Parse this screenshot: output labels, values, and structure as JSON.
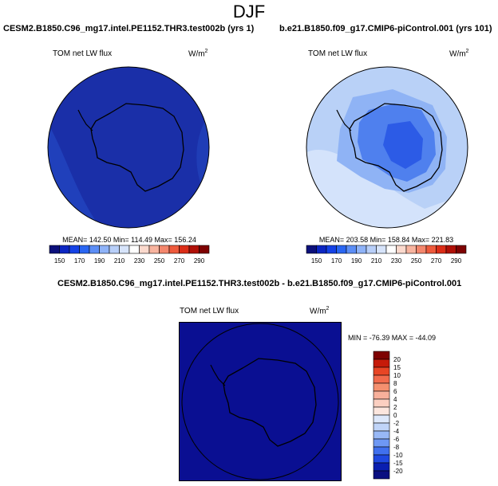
{
  "title": "DJF",
  "panels": [
    {
      "case": "CESM2.B1850.C96_mg17.intel.PE1152.THR3.test002b (yrs 1)",
      "variable": "TOM net LW flux",
      "units": "W/m",
      "units_exp": "2",
      "stats": "MEAN= 142.50 Min= 114.49 Max= 156.24",
      "colorbar": {
        "labels": [
          "150",
          "170",
          "190",
          "210",
          "230",
          "250",
          "270",
          "290"
        ],
        "colors": [
          "#0c107b",
          "#0c26c2",
          "#1542e6",
          "#2a66f2",
          "#5c8ef6",
          "#8fb3f8",
          "#b8cff9",
          "#d7e4fb",
          "#ffffff",
          "#fbd9cd",
          "#f8b49f",
          "#f4876d",
          "#ee5a3c",
          "#db2d17",
          "#b01007",
          "#7e0202"
        ]
      }
    },
    {
      "case": "b.e21.B1850.f09_g17.CMIP6-piControl.001 (yrs 101)",
      "variable": "TOM net LW flux",
      "units": "W/m",
      "units_exp": "2",
      "stats": "MEAN= 203.58 Min= 158.84 Max= 221.83",
      "colorbar": {
        "labels": [
          "150",
          "170",
          "190",
          "210",
          "230",
          "250",
          "270",
          "290"
        ],
        "colors": [
          "#0c107b",
          "#0c26c2",
          "#1542e6",
          "#2a66f2",
          "#5c8ef6",
          "#8fb3f8",
          "#b8cff9",
          "#d7e4fb",
          "#ffffff",
          "#fbd9cd",
          "#f8b49f",
          "#f4876d",
          "#ee5a3c",
          "#db2d17",
          "#b01007",
          "#7e0202"
        ]
      }
    }
  ],
  "diff": {
    "case": "CESM2.B1850.C96_mg17.intel.PE1152.THR3.test002b - b.e21.B1850.f09_g17.CMIP6-piControl.001",
    "variable": "TOM net LW flux",
    "units": "W/m",
    "units_exp": "2",
    "stats": "MIN = -76.39 MAX = -44.09",
    "colorbar": {
      "labels": [
        "20",
        "15",
        "10",
        "8",
        "6",
        "4",
        "2",
        "0",
        "-2",
        "-4",
        "-6",
        "-8",
        "-10",
        "-15",
        "-20"
      ],
      "colors": [
        "#7e0202",
        "#c61b0a",
        "#e84525",
        "#f26a4c",
        "#f5906f",
        "#f8b09b",
        "#fbcfc1",
        "#fce6de",
        "#dde8fb",
        "#c0d4f8",
        "#98b8f6",
        "#6e98f4",
        "#4070ee",
        "#1f48e0",
        "#0a1fb0",
        "#0a0f80"
      ]
    }
  },
  "colors": {
    "panel1_fill": "#1a2fa8",
    "panel1_edge": "#2040bb",
    "panel2_ocean": "#b9d1f7",
    "panel2_mid": "#8fb3f5",
    "panel2_deep": "#4f80ee",
    "panel2_core": "#2c5be6",
    "diff_fill": "#0a0f92",
    "coast": "#000000"
  }
}
